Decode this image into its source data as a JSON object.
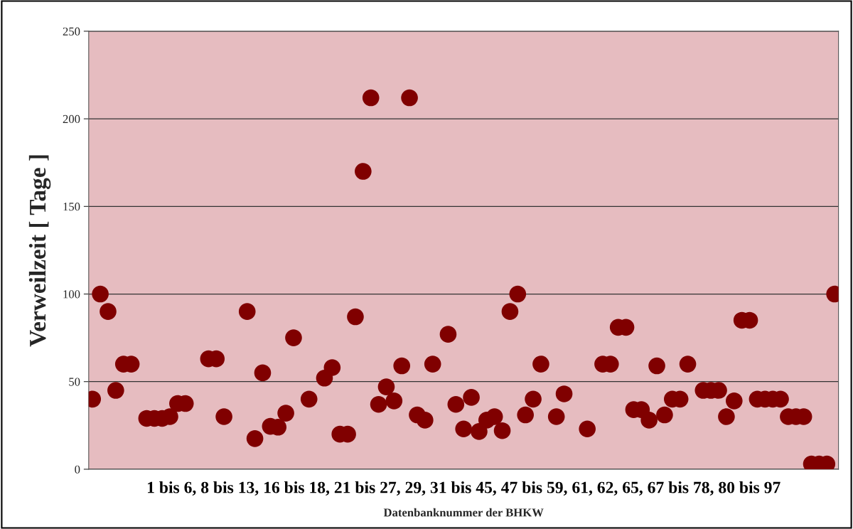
{
  "chart_data": {
    "type": "scatter",
    "ylabel": "Verweilzeit [ Tage ]",
    "xlabel": "Datenbanknummer der BHKW",
    "annotations": [
      "1 bis 6, 8 bis 13, 16 bis 18, 21 bis 27, 29, 31 bis 45, 47 bis 59, 61, 62, 65, 67 bis 78, 80 bis 97"
    ],
    "categories": [
      null,
      null,
      null,
      null,
      null,
      null,
      null,
      null,
      null,
      null,
      null,
      null,
      null,
      null,
      null,
      null,
      null,
      null,
      null,
      null,
      null,
      null,
      null,
      null,
      null,
      null,
      null,
      null,
      null,
      null,
      null,
      null,
      null,
      null,
      null,
      null,
      null,
      null,
      null,
      null,
      null,
      null,
      null,
      null,
      null,
      null,
      null,
      null,
      null,
      null,
      null,
      null,
      null,
      null,
      null,
      null,
      null,
      null,
      null,
      null,
      null,
      null,
      null,
      null,
      null,
      null,
      null,
      null,
      null,
      null,
      null,
      null,
      null,
      null,
      null,
      null,
      null,
      null,
      null,
      null,
      null,
      null,
      null,
      null,
      null,
      null,
      null,
      null,
      null,
      null,
      null,
      null,
      null,
      null,
      null,
      null,
      null
    ],
    "series": [
      {
        "color": "#800000",
        "values": [
          40,
          100,
          90,
          45,
          60,
          60,
          null,
          29,
          29,
          29,
          30,
          37.5,
          37.5,
          null,
          null,
          63,
          63,
          30,
          null,
          null,
          90,
          17.5,
          55,
          24.5,
          24,
          32,
          75,
          null,
          40,
          null,
          52,
          58,
          20,
          20,
          87,
          170,
          212,
          37,
          47,
          39,
          59,
          212,
          31,
          28,
          60,
          null,
          77,
          37,
          23,
          41,
          21.5,
          28,
          30,
          22,
          90,
          100,
          31,
          40,
          60,
          null,
          30,
          43,
          null,
          null,
          23,
          null,
          60,
          60,
          81,
          81,
          34,
          34,
          28,
          59,
          31,
          40,
          40,
          60,
          null,
          45,
          45,
          45,
          30,
          39,
          85,
          85,
          40,
          40,
          40,
          40,
          30,
          30,
          30,
          3,
          3,
          3,
          100
        ]
      }
    ],
    "ylim": [
      0,
      250
    ],
    "yticks": [
      0,
      50,
      100,
      150,
      200,
      250
    ],
    "grid": "y",
    "marker": "circle",
    "legend": false,
    "tick_labels": "y"
  }
}
